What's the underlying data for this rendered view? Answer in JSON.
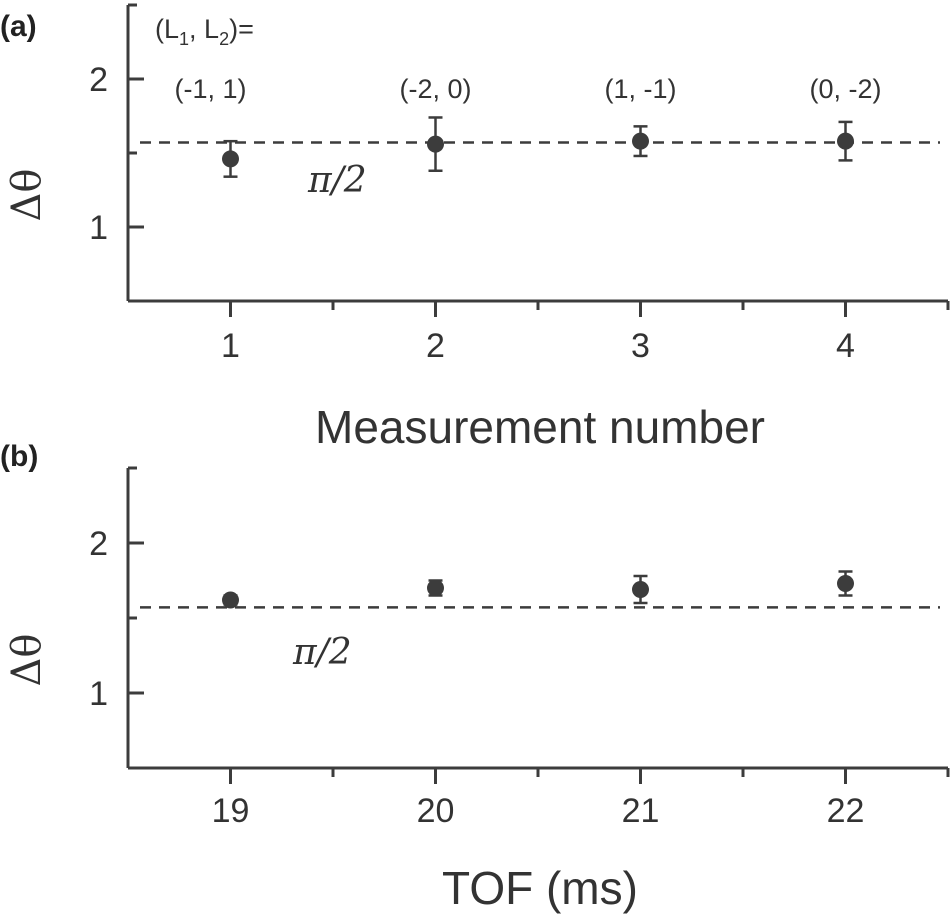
{
  "chart_data": [
    {
      "panel_label": "(a)",
      "type": "scatter",
      "xlabel": "Measurement number",
      "ylabel": "Δθ",
      "xlim": [
        0.5,
        4.5
      ],
      "ylim": [
        0.5,
        2.5
      ],
      "xticks": [
        1,
        2,
        3,
        4
      ],
      "xtick_labels": [
        "1",
        "2",
        "3",
        "4"
      ],
      "yticks": [
        1,
        2
      ],
      "ytick_labels": [
        "1",
        "2"
      ],
      "reference_line": {
        "y": 1.5708,
        "label": "π/2"
      },
      "annotation_header": "(L",
      "points": [
        {
          "x": 1,
          "y": 1.46,
          "err": 0.12,
          "label": "(-1, 1)"
        },
        {
          "x": 2,
          "y": 1.56,
          "err": 0.18,
          "label": "(-2, 0)"
        },
        {
          "x": 3,
          "y": 1.58,
          "err": 0.1,
          "label": "(1, -1)"
        },
        {
          "x": 4,
          "y": 1.58,
          "err": 0.13,
          "label": "(0, -2)"
        }
      ]
    },
    {
      "panel_label": "(b)",
      "type": "scatter",
      "xlabel": "TOF (ms)",
      "ylabel": "Δθ",
      "xlim": [
        18.5,
        22.5
      ],
      "ylim": [
        0.5,
        2.5
      ],
      "xticks": [
        19,
        20,
        21,
        22
      ],
      "xtick_labels": [
        "19",
        "20",
        "21",
        "22"
      ],
      "yticks": [
        1,
        2
      ],
      "ytick_labels": [
        "1",
        "2"
      ],
      "reference_line": {
        "y": 1.5708,
        "label": "π/2"
      },
      "points": [
        {
          "x": 19,
          "y": 1.62,
          "err": 0.03
        },
        {
          "x": 20,
          "y": 1.7,
          "err": 0.05
        },
        {
          "x": 21,
          "y": 1.69,
          "err": 0.09
        },
        {
          "x": 22,
          "y": 1.73,
          "err": 0.08
        }
      ]
    }
  ]
}
